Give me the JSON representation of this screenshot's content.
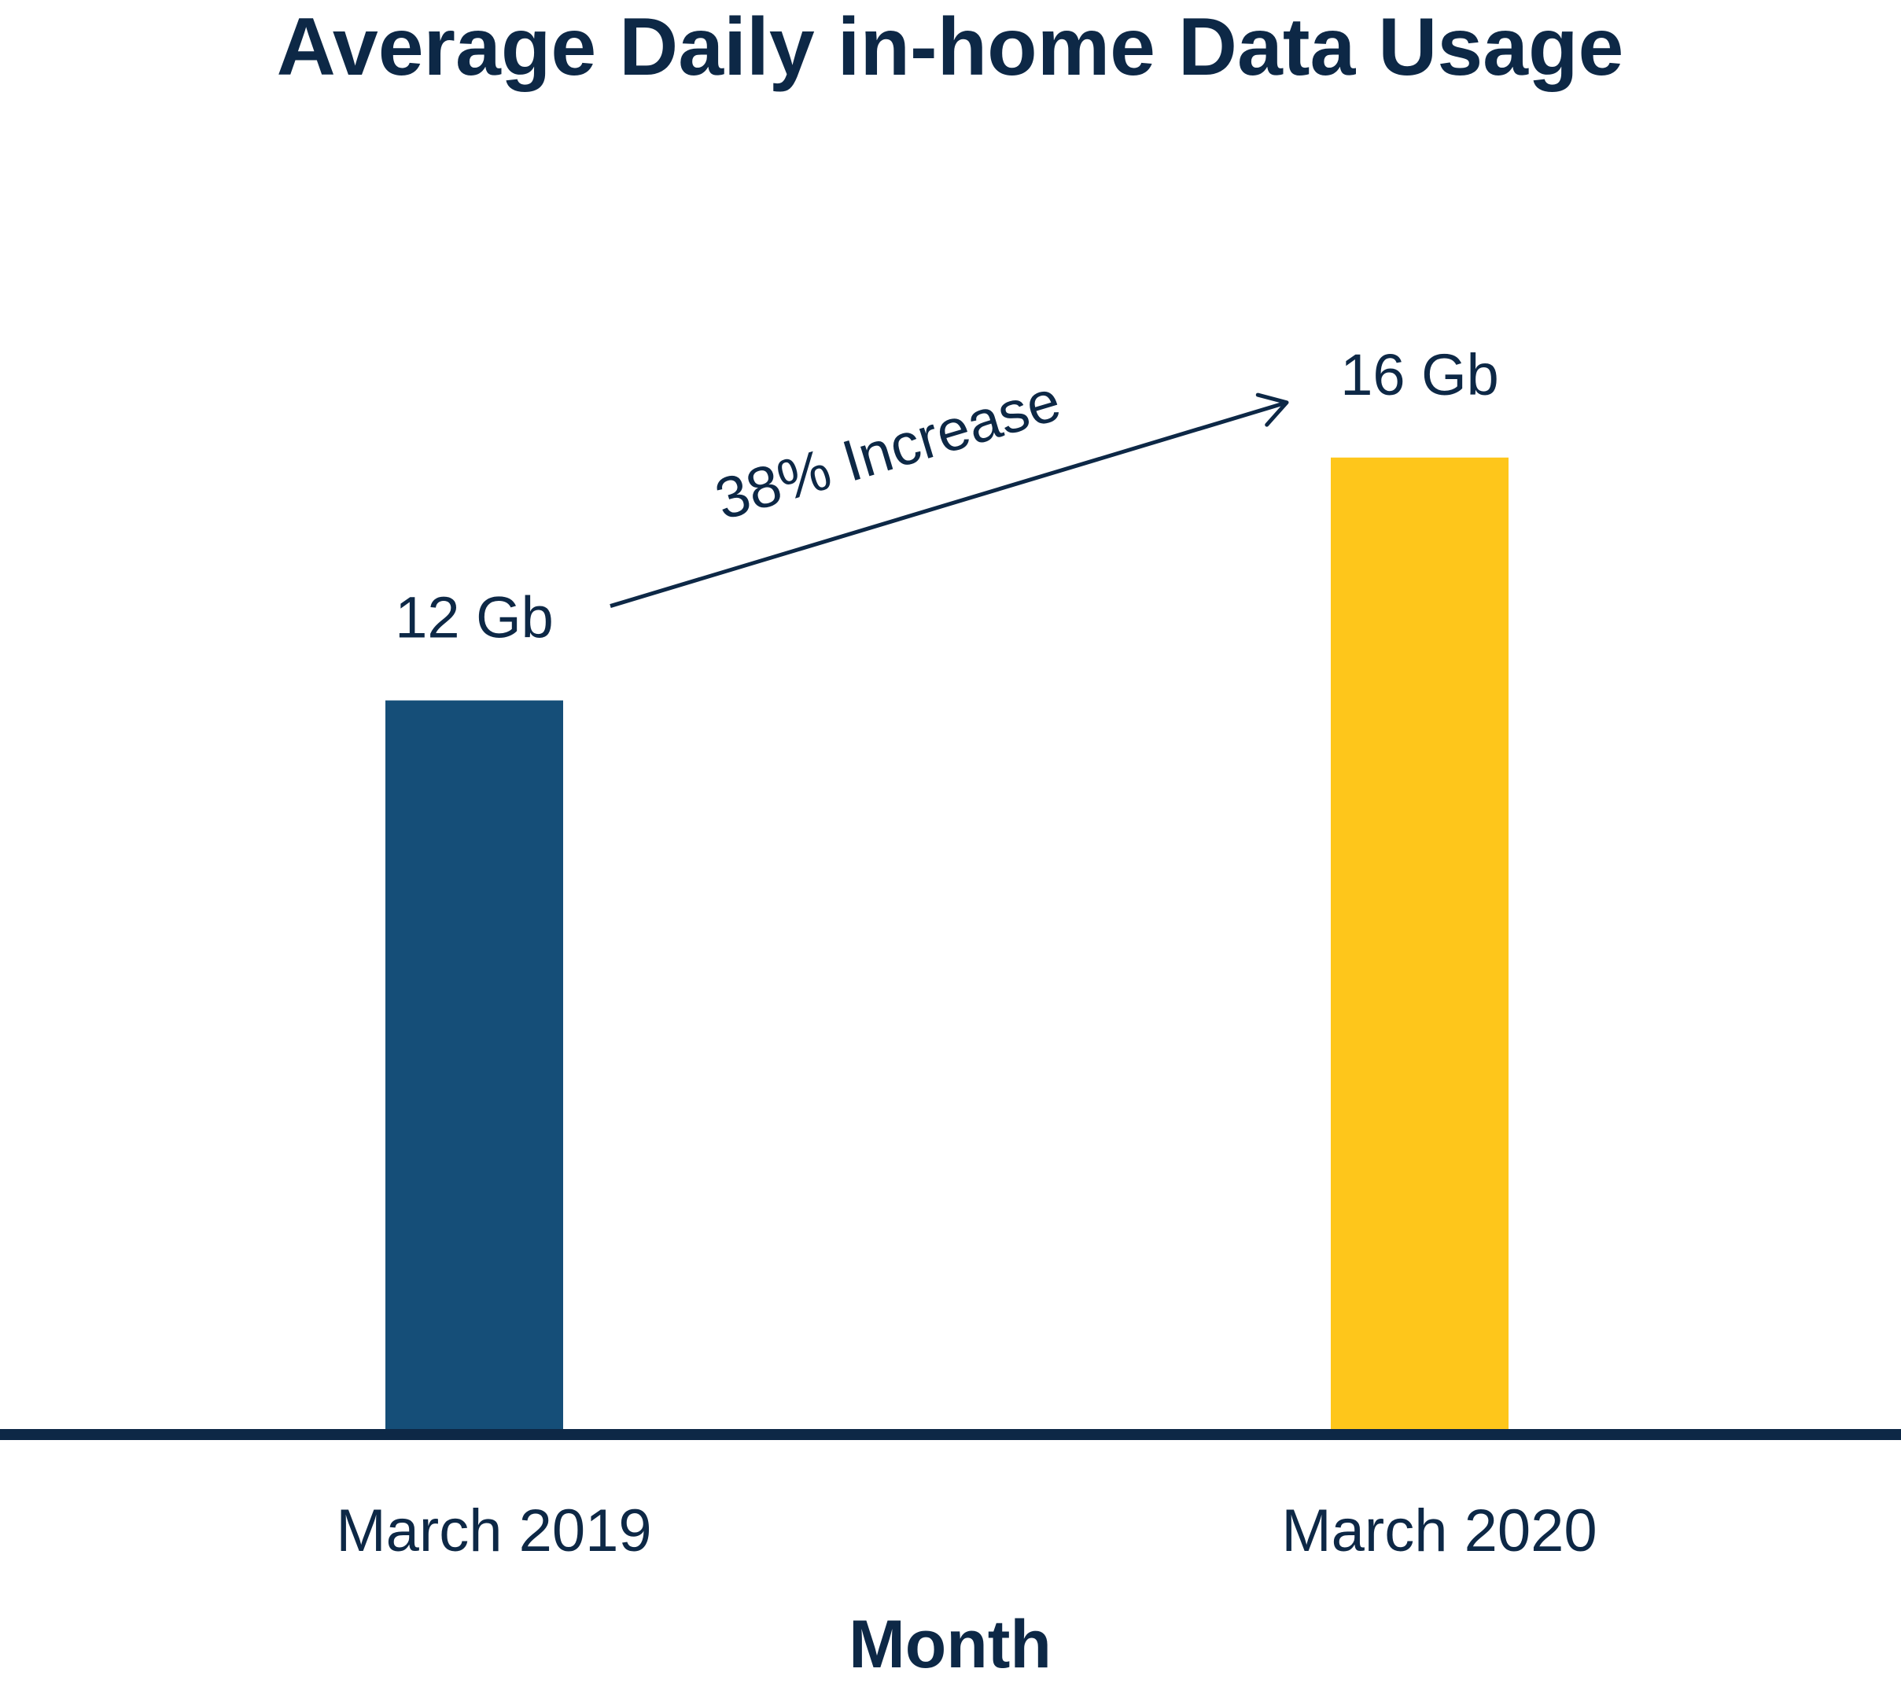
{
  "chart_data": {
    "type": "bar",
    "title": "Average Daily in-home Data Usage",
    "xlabel": "Month",
    "ylabel": "",
    "categories": [
      "March 2019",
      "March 2020"
    ],
    "values": [
      12,
      16
    ],
    "value_labels": [
      "12 Gb",
      "16 Gb"
    ],
    "unit": "Gb",
    "ylim": [
      0,
      19.3
    ],
    "grid": false,
    "legend": "none",
    "bar_colors": [
      "#154e78",
      "#fec61b"
    ],
    "text_color": "#0d2846",
    "annotation": {
      "text": "38% Increase",
      "from_category": "March 2019",
      "to_category": "March 2020"
    }
  }
}
